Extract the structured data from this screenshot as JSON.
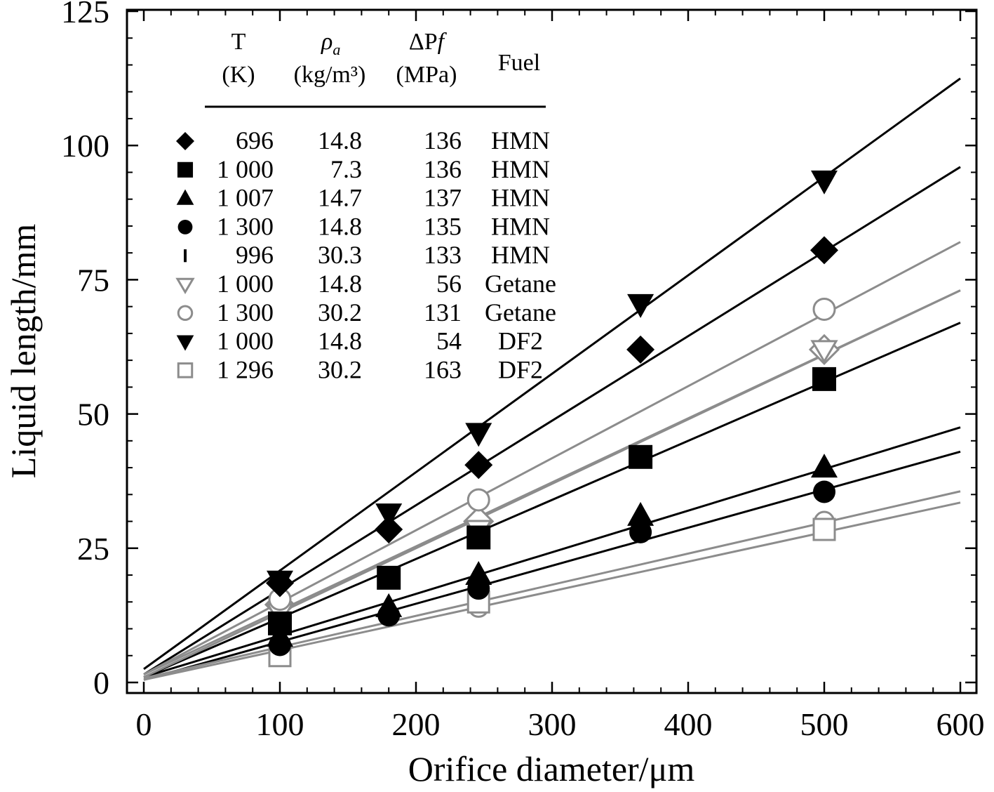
{
  "chart_data": {
    "type": "scatter",
    "title": "",
    "xlabel": "Orifice diameter/μm",
    "ylabel": "Liquid length/mm",
    "xlim": [
      -5,
      600
    ],
    "ylim": [
      -2,
      125
    ],
    "xticks": [
      0,
      100,
      200,
      300,
      400,
      500,
      600
    ],
    "yticks": [
      0,
      25,
      50,
      75,
      100,
      125
    ],
    "grid": false,
    "legend_placement": "top-left",
    "legend_header": {
      "T": "T",
      "T_unit": "(K)",
      "rho": "ρ",
      "rho_sub": "a",
      "rho_unit": "(kg/m³)",
      "dp": "ΔP",
      "dp_f": "f",
      "dp_unit": "(MPa)",
      "fuel": "Fuel"
    },
    "series": [
      {
        "name": "696 K, 14.8 kg/m3, 136 MPa, HMN",
        "T": "696",
        "rho": "14.8",
        "dp": "136",
        "fuel": "HMN",
        "marker": "diamond-filled",
        "line_color": "#000000",
        "x": [
          100,
          180,
          246,
          365,
          500
        ],
        "y": [
          18.5,
          28.5,
          40.5,
          62,
          80.5
        ],
        "fit": [
          1.5,
          0.1575
        ]
      },
      {
        "name": "1 000 K, 7.3 kg/m3, 136 MPa, HMN",
        "T": "1 000",
        "rho": "7.3",
        "dp": "136",
        "fuel": "HMN",
        "marker": "square-filled",
        "line_color": "#000000",
        "x": [
          100,
          180,
          246,
          365,
          500
        ],
        "y": [
          11,
          19.5,
          27,
          42,
          56.5
        ],
        "fit": [
          1.0,
          0.11
        ]
      },
      {
        "name": "1 007 K, 14.7 kg/m3, 137 MPa, HMN",
        "T": "1 007",
        "rho": "14.7",
        "dp": "137",
        "fuel": "HMN",
        "marker": "triangle-up-filled",
        "line_color": "#000000",
        "x": [
          100,
          180,
          246,
          365,
          500
        ],
        "y": [
          8.5,
          14,
          20,
          31,
          40
        ],
        "fit": [
          1.0,
          0.0775
        ]
      },
      {
        "name": "1 300 K, 14.8 kg/m3, 135 MPa, HMN",
        "T": "1 300",
        "rho": "14.8",
        "dp": "135",
        "fuel": "HMN",
        "marker": "circle-filled",
        "line_color": "#000000",
        "x": [
          100,
          180,
          246,
          365,
          500
        ],
        "y": [
          7,
          12.5,
          17.5,
          28,
          35.5
        ],
        "fit": [
          0.5,
          0.0708
        ]
      },
      {
        "name": "996 K, 30.3 kg/m3, 133 MPa, HMN",
        "T": "996",
        "rho": "30.3",
        "dp": "133",
        "fuel": "HMN",
        "marker": "bar",
        "line_color": "#000000",
        "x": [],
        "y": [],
        "fit": null
      },
      {
        "name": "1 000 K, 14.8 kg/m3, 56 MPa, Getane",
        "T": "1 000",
        "rho": "14.8",
        "dp": "56",
        "fuel": "Getane",
        "marker": "triangle-down-open",
        "line_color": "#8c8c8c",
        "x": [
          100,
          246,
          500
        ],
        "y": [
          13,
          28.5,
          62
        ],
        "fit": [
          1.5,
          0.1192
        ]
      },
      {
        "name": "1 300 K, 30.2 kg/m3, 131 Mpa, Getane",
        "T": "1 300",
        "rho": "30.2",
        "dp": "131",
        "fuel": "Getane",
        "marker": "circle-open",
        "line_color": "#8c8c8c",
        "x": [
          100,
          246,
          500
        ],
        "y": [
          15.5,
          34,
          69.5
        ],
        "fit": [
          1.5,
          0.1342
        ]
      },
      {
        "name": "1 000 K, 14.8 kg/m3, 54 MPa, DF2",
        "T": "1 000",
        "rho": "14.8",
        "dp": "54",
        "fuel": "DF2",
        "marker": "triangle-down-filled",
        "line_color": "#000000",
        "x": [
          100,
          180,
          246,
          365,
          500
        ],
        "y": [
          19,
          31.5,
          46.5,
          70.5,
          93.5
        ],
        "fit": [
          2.5,
          0.1833
        ]
      },
      {
        "name": "1 296 K, 30.2 kg/m3, 163 MPa, DF2",
        "T": "1 296",
        "rho": "30.2",
        "dp": "163",
        "fuel": "DF2",
        "marker": "square-open",
        "line_color": "#8c8c8c",
        "x": [
          100,
          246,
          500
        ],
        "y": [
          5,
          15,
          28.5
        ],
        "fit": [
          0.5,
          0.055
        ]
      }
    ],
    "extra_open_diamonds": {
      "x": [
        100,
        246,
        500
      ],
      "y": [
        14.5,
        30,
        62
      ],
      "fit": [
        1.0,
        0.12
      ]
    },
    "extra_open_circles_low": {
      "x": [
        100,
        246,
        500
      ],
      "y": [
        6,
        14,
        30
      ],
      "fit": [
        0.8,
        0.058
      ]
    }
  }
}
